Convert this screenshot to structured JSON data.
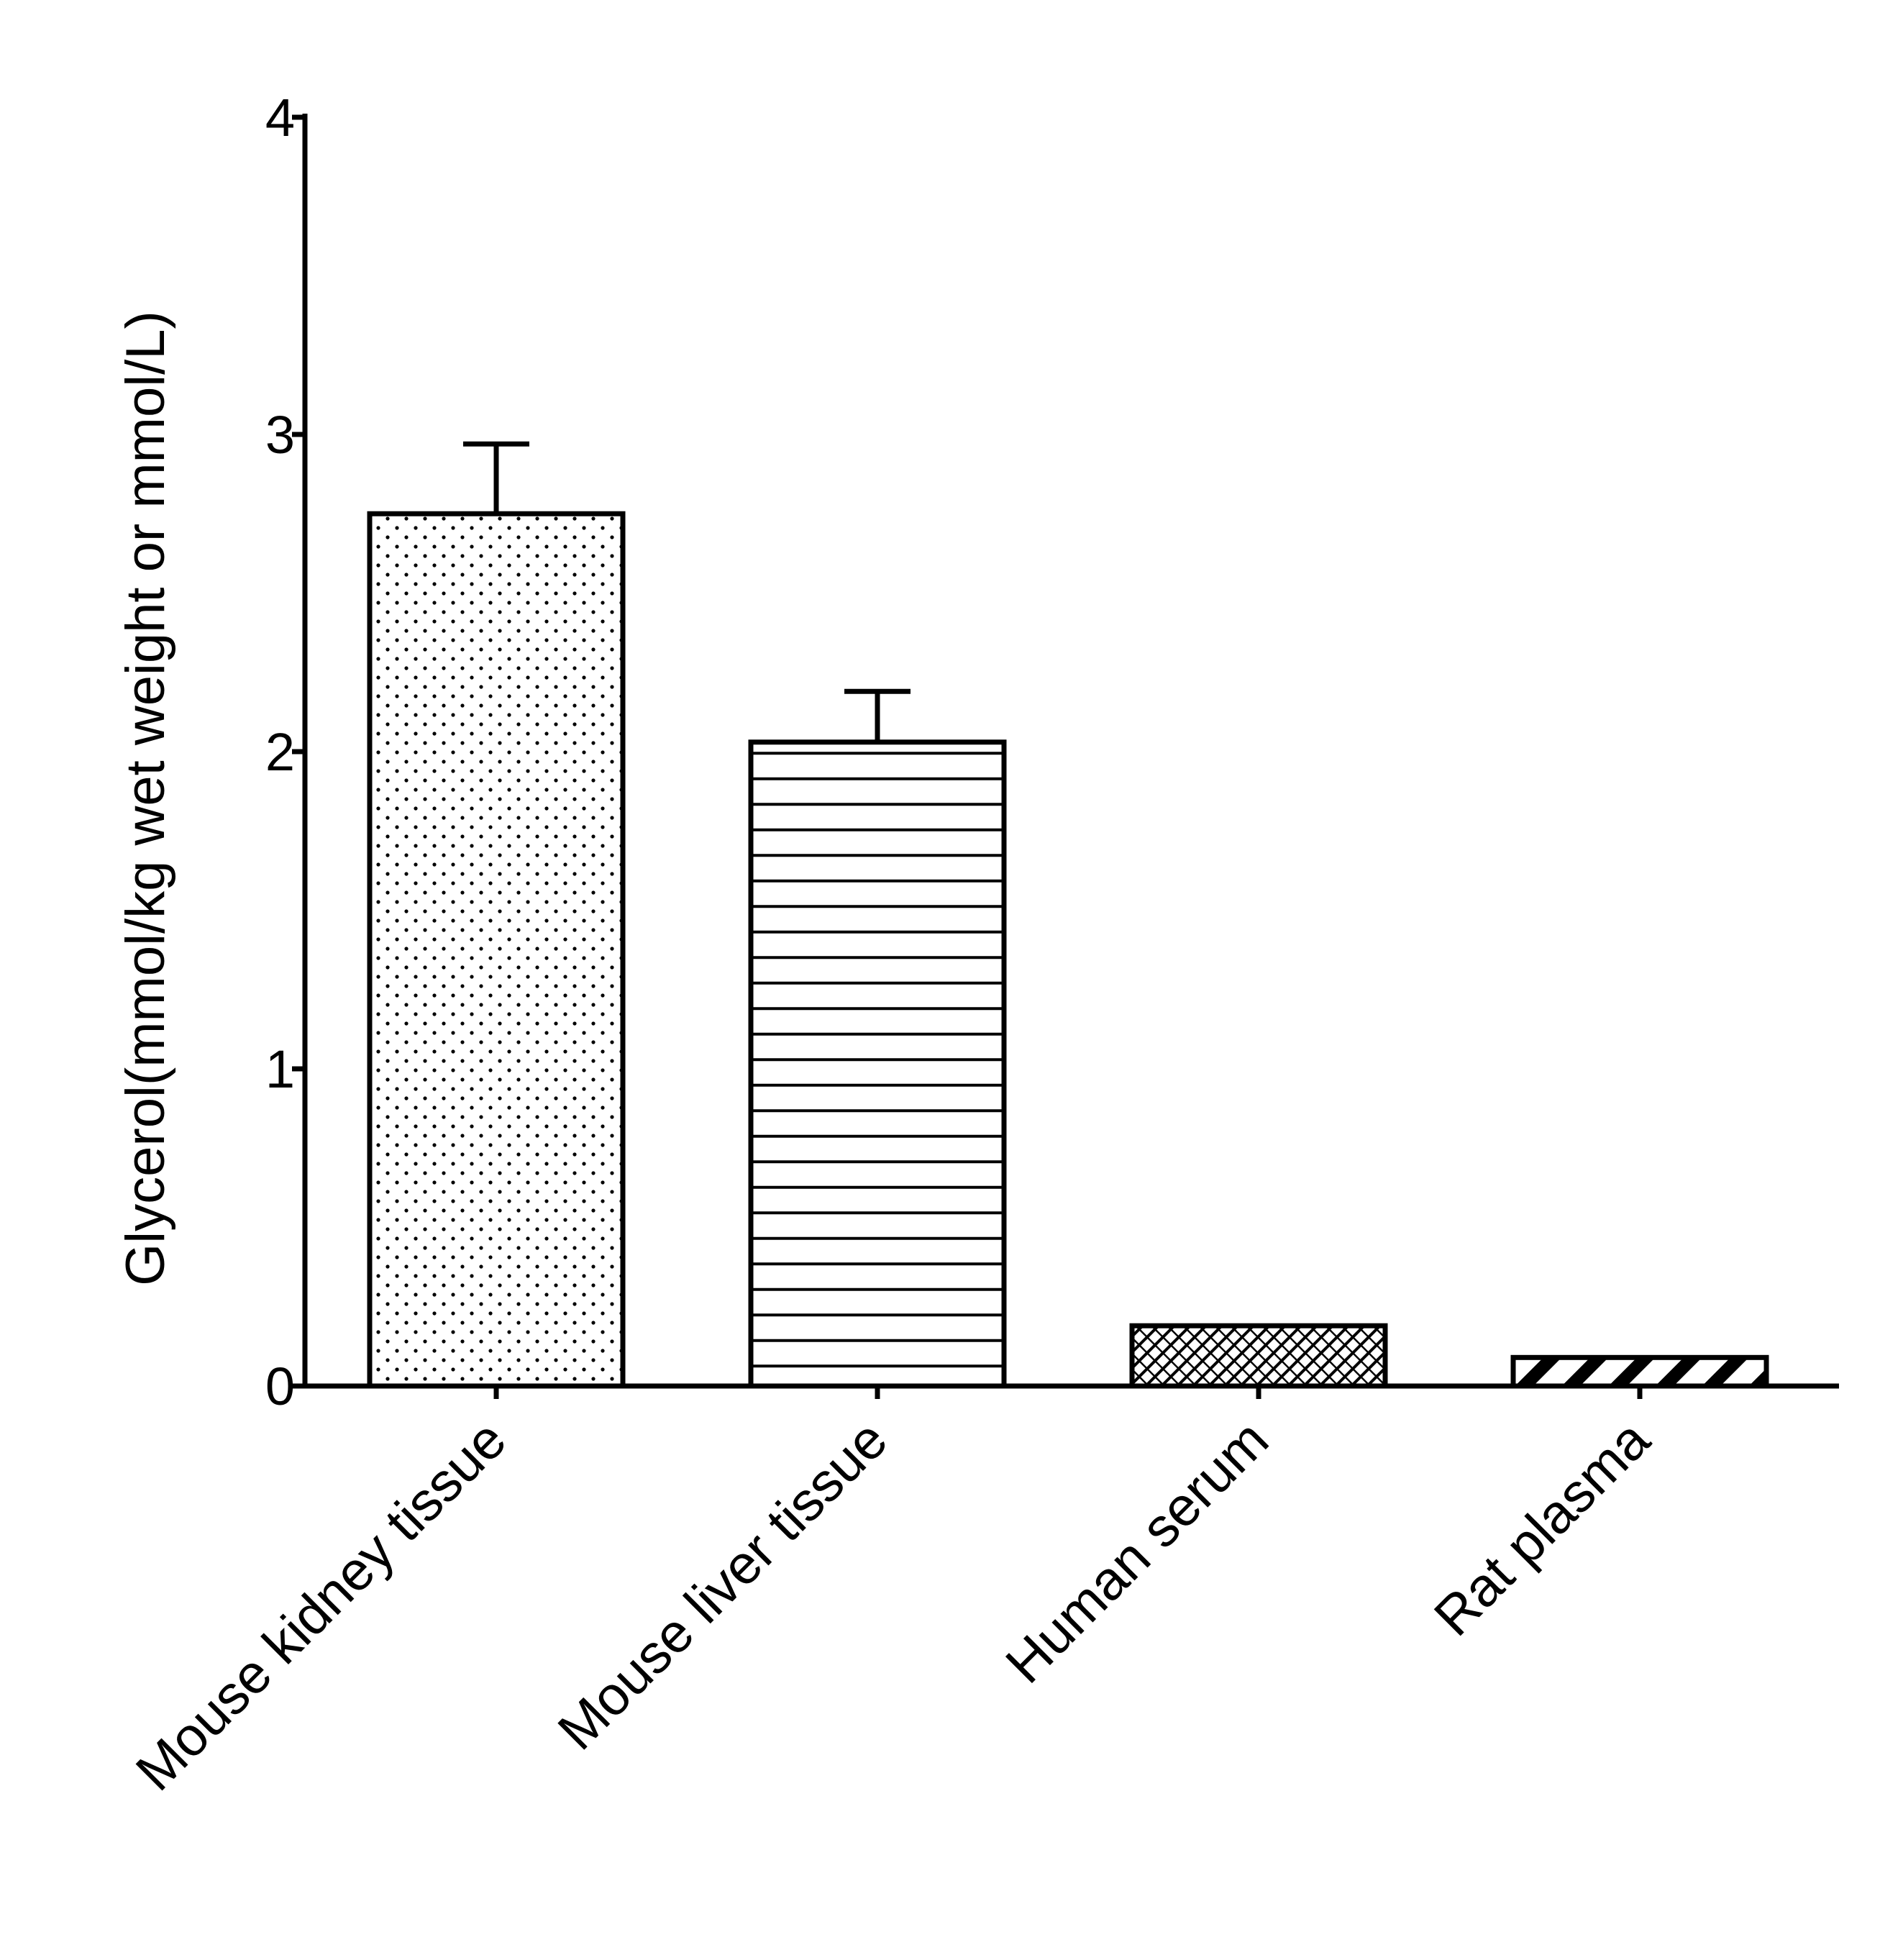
{
  "chart_data": {
    "type": "bar",
    "title": "",
    "xlabel": "",
    "ylabel": "Glycerol(mmol/kg wet weight or mmol/L)",
    "ylim": [
      0,
      4
    ],
    "yticks": [
      "0",
      "1",
      "2",
      "3",
      "4"
    ],
    "categories": [
      "Mouse kidney tissue",
      "Mouse liver tissue",
      "Human serum",
      "Rat plasma"
    ],
    "values": [
      2.75,
      2.03,
      0.19,
      0.09
    ],
    "error_upper": [
      0.22,
      0.16,
      0,
      0
    ],
    "patterns": [
      "dots",
      "horizontal-lines",
      "crosshatch",
      "thick-diagonal"
    ],
    "grid": false,
    "colors": {
      "ink": "#000000",
      "fill": "#ffffff"
    }
  }
}
